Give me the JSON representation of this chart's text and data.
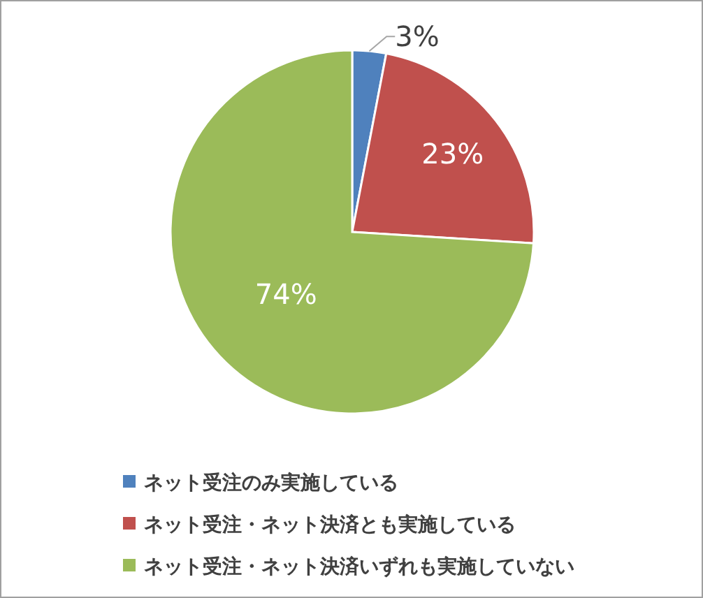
{
  "chart_data": {
    "type": "pie",
    "categories": [
      "ネット受注のみ実施している",
      "ネット受注・ネット決済とも実施している",
      "ネット受注・ネット決済いずれも実施していない"
    ],
    "values": [
      3,
      23,
      74
    ],
    "value_labels": [
      "3%",
      "23%",
      "74%"
    ],
    "colors": [
      "#4f81bd",
      "#c0504d",
      "#9bbb59"
    ],
    "legend": "bottom"
  }
}
